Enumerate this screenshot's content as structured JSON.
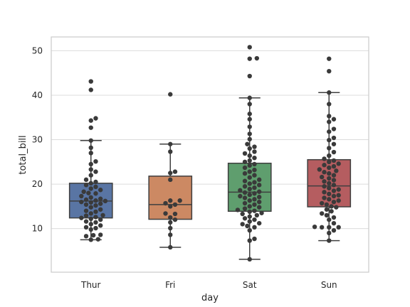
{
  "chart_data": {
    "type": "box",
    "title": "",
    "xlabel": "day",
    "ylabel": "total_bill",
    "ylim": [
      0.2,
      53.1
    ],
    "grid": "horizontal",
    "yticks": [
      10,
      20,
      30,
      40,
      50
    ],
    "categories": [
      "Thur",
      "Fri",
      "Sat",
      "Sun"
    ],
    "colors": [
      "#5975A4",
      "#CC8963",
      "#5F9E6E",
      "#B55D60"
    ],
    "point_color": "#3a3a3a",
    "boxes": [
      {
        "category": "Thur",
        "whisker_low": 7.5,
        "q1": 12.4,
        "median": 16.2,
        "q3": 20.2,
        "whisker_high": 29.8,
        "outliers": [
          32.7,
          34.3,
          34.8,
          41.2,
          43.1
        ],
        "points": [
          7.5,
          7.6,
          8.3,
          8.5,
          8.6,
          9.8,
          10.1,
          10.3,
          10.7,
          11.0,
          11.4,
          11.6,
          12.0,
          12.2,
          12.4,
          12.6,
          12.9,
          13.0,
          13.4,
          13.8,
          14.0,
          14.3,
          14.8,
          15.2,
          15.4,
          15.6,
          15.9,
          16.0,
          16.2,
          16.3,
          16.5,
          16.7,
          17.0,
          17.3,
          17.9,
          18.0,
          18.3,
          18.7,
          19.0,
          19.4,
          19.8,
          20.2,
          20.5,
          21.0,
          22.0,
          22.8,
          23.3,
          24.5,
          25.1,
          27.0,
          28.2,
          29.8
        ]
      },
      {
        "category": "Fri",
        "whisker_low": 5.8,
        "q1": 12.1,
        "median": 15.4,
        "q3": 21.8,
        "whisker_high": 29.0,
        "outliers": [
          40.2
        ],
        "points": [
          5.8,
          8.6,
          10.1,
          11.4,
          12.0,
          12.5,
          13.3,
          13.4,
          15.0,
          15.4,
          15.7,
          16.3,
          16.3,
          21.0,
          22.5,
          22.8,
          27.3,
          29.0
        ]
      },
      {
        "category": "Sat",
        "whisker_low": 3.1,
        "q1": 13.9,
        "median": 18.2,
        "q3": 24.7,
        "whisker_high": 39.4,
        "outliers": [
          44.3,
          48.2,
          48.3,
          50.8
        ],
        "points": [
          3.1,
          7.3,
          7.7,
          9.6,
          10.3,
          10.6,
          11.0,
          11.2,
          11.6,
          12.0,
          12.3,
          12.7,
          13.0,
          13.3,
          13.5,
          13.8,
          14.0,
          14.2,
          14.5,
          14.8,
          15.0,
          15.4,
          15.7,
          16.0,
          16.3,
          16.6,
          16.9,
          17.1,
          17.3,
          17.6,
          17.9,
          18.1,
          18.3,
          18.6,
          18.9,
          19.2,
          19.5,
          19.8,
          20.1,
          20.4,
          20.7,
          21.0,
          21.5,
          22.0,
          22.4,
          22.8,
          23.2,
          23.7,
          24.2,
          24.5,
          25.0,
          25.3,
          25.9,
          26.4,
          26.9,
          27.3,
          28.0,
          28.4,
          29.0,
          30.1,
          31.3,
          32.9,
          34.6,
          35.8,
          38.0,
          39.4
        ]
      },
      {
        "category": "Sun",
        "whisker_low": 7.3,
        "q1": 14.9,
        "median": 19.6,
        "q3": 25.5,
        "whisker_high": 40.6,
        "outliers": [
          45.4,
          48.2
        ],
        "points": [
          7.3,
          9.0,
          9.6,
          10.3,
          10.3,
          10.3,
          10.4,
          11.2,
          12.0,
          12.5,
          13.0,
          13.4,
          13.9,
          14.3,
          14.8,
          15.0,
          15.4,
          15.7,
          16.0,
          16.3,
          16.6,
          16.9,
          17.3,
          17.5,
          17.8,
          18.2,
          18.5,
          18.8,
          19.1,
          19.5,
          19.8,
          20.2,
          20.6,
          20.9,
          21.3,
          21.6,
          22.0,
          22.4,
          22.7,
          23.0,
          23.3,
          23.7,
          24.0,
          24.3,
          24.6,
          25.0,
          25.3,
          25.7,
          26.4,
          27.2,
          28.1,
          29.0,
          29.9,
          30.4,
          31.8,
          32.4,
          34.0,
          34.6,
          35.3,
          38.0,
          40.6
        ]
      }
    ]
  }
}
